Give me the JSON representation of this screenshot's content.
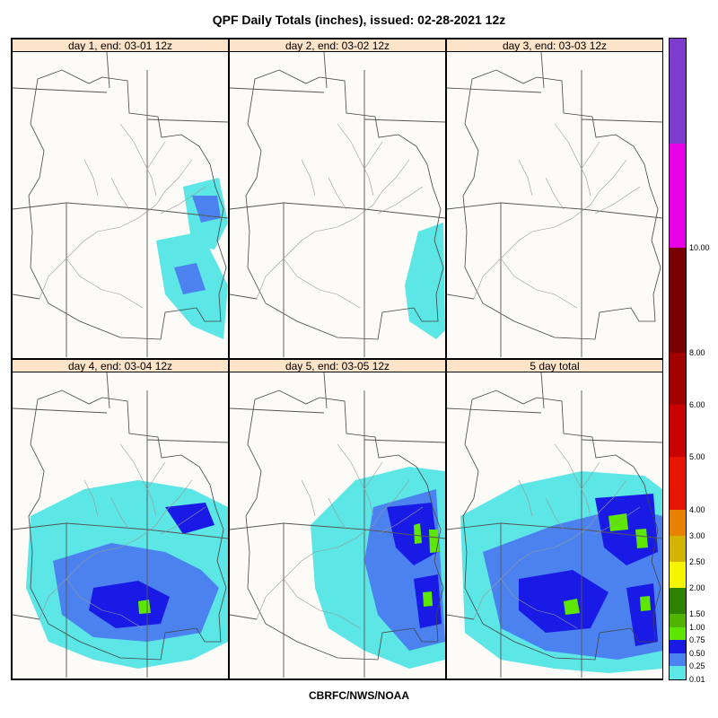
{
  "title": "QPF Daily Totals (inches),  issued: 02-28-2021 12z",
  "footer": "CBRFC/NWS/NOAA",
  "panels": [
    {
      "label": "day 1, end: 03-01 12z",
      "intensity": "light-northeast-southeast"
    },
    {
      "label": "day 2, end: 03-02 12z",
      "intensity": "light-east"
    },
    {
      "label": "day 3, end: 03-03 12z",
      "intensity": "none"
    },
    {
      "label": "day 4, end: 03-04 12z",
      "intensity": "moderate-south"
    },
    {
      "label": "day 5, end: 03-05 12z",
      "intensity": "moderate-east"
    },
    {
      "label": "5 day total",
      "intensity": "heavy-south-east"
    }
  ],
  "legend": {
    "ticks": [
      "0.01",
      "0.25",
      "0.50",
      "0.75",
      "1.00",
      "1.50",
      "2.00",
      "2.50",
      "3.00",
      "4.00",
      "5.00",
      "6.00",
      "8.00",
      "10.00"
    ],
    "colors": [
      "#5ce6e6",
      "#4b82f0",
      "#1a1ae6",
      "#5ce600",
      "#50b400",
      "#2d8200",
      "#f5f500",
      "#d2b400",
      "#e68200",
      "#e61400",
      "#c80000",
      "#a00000",
      "#780000",
      "#e600e6",
      "#7d3ccc"
    ]
  }
}
